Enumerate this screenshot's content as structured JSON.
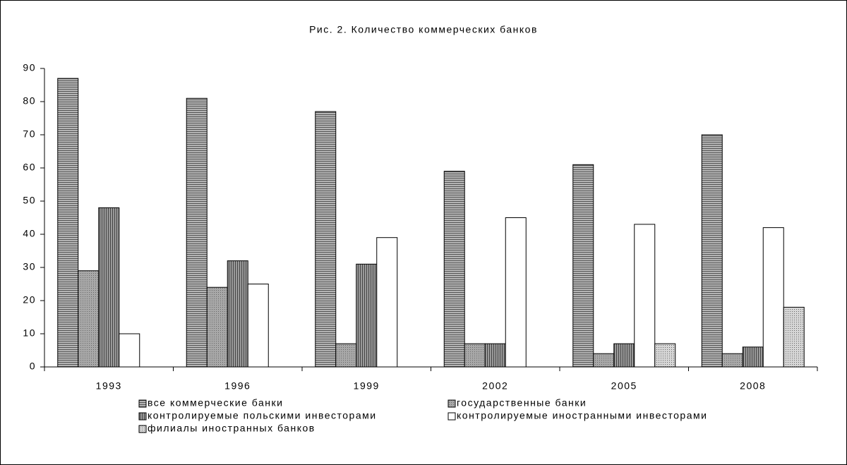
{
  "chart_data": {
    "type": "bar",
    "title": "Рис. 2.  Количество коммерческих банков",
    "categories": [
      "1993",
      "1996",
      "1999",
      "2002",
      "2005",
      "2008"
    ],
    "series": [
      {
        "name": "все коммерческие банки",
        "color": "#b4b4b4",
        "values": [
          87,
          81,
          77,
          59,
          61,
          70
        ]
      },
      {
        "name": "государственные банки",
        "color": "#a8a8a8",
        "values": [
          29,
          24,
          7,
          7,
          4,
          4
        ]
      },
      {
        "name": "контролируемые польскими инвесторами",
        "color": "#9a9a9a",
        "values": [
          48,
          32,
          31,
          7,
          7,
          6
        ]
      },
      {
        "name": "контролируемые иностранными инвесторами",
        "color": "#ffffff",
        "values": [
          10,
          25,
          39,
          45,
          43,
          42
        ]
      },
      {
        "name": "филиалы иностранных банков",
        "color": "#d6d6d6",
        "values": [
          0,
          0,
          0,
          0,
          7,
          18
        ]
      }
    ],
    "ylim": [
      0,
      90
    ],
    "yticks": [
      0,
      10,
      20,
      30,
      40,
      50,
      60,
      70,
      80,
      90
    ],
    "grid": false
  }
}
